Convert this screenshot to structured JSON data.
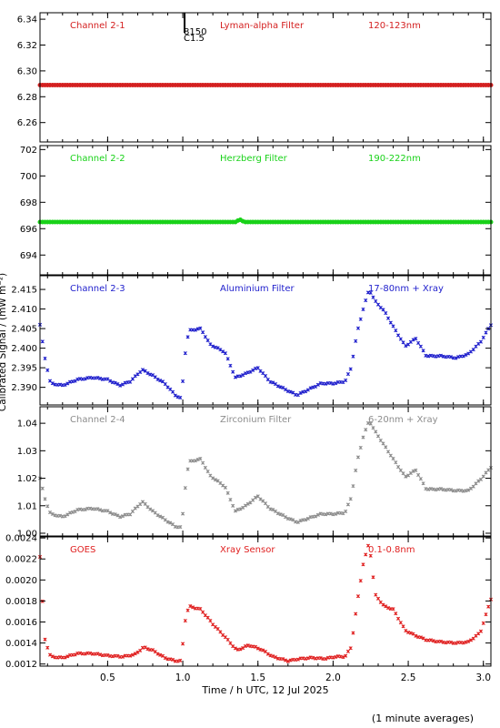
{
  "figure": {
    "ylabel": "Calibrated Signal / (mW m⁻²)",
    "xlabel": "Time / h UTC, 12 Jul 2025",
    "footnote": "(1 minute averages)",
    "x_ticks": [
      "0.5",
      "1.0",
      "1.5",
      "2.0",
      "2.5",
      "3.0"
    ],
    "marker_label_a": "8150",
    "marker_label_b": "C1.5"
  },
  "chart_data": [
    {
      "type": "scatter",
      "channel": "Channel 2-1",
      "filter": "Lyman-alpha Filter",
      "band": "120-123nm",
      "color": "#d42020",
      "xlim": [
        0.05,
        3.05
      ],
      "ylim": [
        6.245,
        6.345
      ],
      "y_ticks": [
        "6.34",
        "6.32",
        "6.30",
        "6.28",
        "6.26"
      ],
      "y_tick_values": [
        6.34,
        6.32,
        6.3,
        6.28,
        6.26
      ],
      "y_precision": 2,
      "knots": [
        [
          0.05,
          6.289
        ],
        [
          3.05,
          6.289
        ]
      ],
      "marker_time": 1.03
    },
    {
      "type": "scatter",
      "channel": "Channel 2-2",
      "filter": "Herzberg Filter",
      "band": "190-222nm",
      "color": "#19d219",
      "xlim": [
        0.05,
        3.05
      ],
      "ylim": [
        692.5,
        702.3
      ],
      "y_ticks": [
        "702",
        "700",
        "698",
        "696",
        "694"
      ],
      "y_tick_values": [
        702,
        700,
        698,
        696,
        694
      ],
      "y_precision": 1,
      "knots": [
        [
          0.05,
          696.5
        ],
        [
          1.35,
          696.5
        ],
        [
          1.38,
          696.7
        ],
        [
          1.41,
          696.5
        ],
        [
          3.05,
          696.5
        ]
      ]
    },
    {
      "type": "scatter",
      "channel": "Channel 2-3",
      "filter": "Aluminium Filter",
      "band": "17-80nm + Xray",
      "color": "#1e1ecc",
      "xlim": [
        0.05,
        3.05
      ],
      "ylim": [
        2.3855,
        2.4185
      ],
      "y_ticks": [
        "2.415",
        "2.410",
        "2.405",
        "2.400",
        "2.395",
        "2.390"
      ],
      "y_tick_values": [
        2.415,
        2.41,
        2.405,
        2.4,
        2.395,
        2.39
      ],
      "y_precision": 4,
      "knots": [
        [
          0.05,
          2.406
        ],
        [
          0.08,
          2.398
        ],
        [
          0.12,
          2.391
        ],
        [
          0.2,
          2.3905
        ],
        [
          0.3,
          2.392
        ],
        [
          0.4,
          2.3925
        ],
        [
          0.5,
          2.392
        ],
        [
          0.58,
          2.3905
        ],
        [
          0.65,
          2.3915
        ],
        [
          0.73,
          2.3945
        ],
        [
          0.8,
          2.393
        ],
        [
          0.88,
          2.391
        ],
        [
          0.95,
          2.388
        ],
        [
          0.995,
          2.387
        ],
        [
          1.005,
          2.396
        ],
        [
          1.04,
          2.4045
        ],
        [
          1.12,
          2.405
        ],
        [
          1.18,
          2.401
        ],
        [
          1.28,
          2.399
        ],
        [
          1.35,
          2.3925
        ],
        [
          1.42,
          2.3935
        ],
        [
          1.5,
          2.395
        ],
        [
          1.58,
          2.3915
        ],
        [
          1.68,
          2.3895
        ],
        [
          1.76,
          2.388
        ],
        [
          1.84,
          2.3895
        ],
        [
          1.92,
          2.391
        ],
        [
          2.0,
          2.391
        ],
        [
          2.08,
          2.3915
        ],
        [
          2.12,
          2.395
        ],
        [
          2.16,
          2.404
        ],
        [
          2.2,
          2.41
        ],
        [
          2.24,
          2.415
        ],
        [
          2.28,
          2.412
        ],
        [
          2.34,
          2.4095
        ],
        [
          2.4,
          2.4055
        ],
        [
          2.48,
          2.4005
        ],
        [
          2.55,
          2.4025
        ],
        [
          2.62,
          2.398
        ],
        [
          2.72,
          2.398
        ],
        [
          2.82,
          2.3975
        ],
        [
          2.9,
          2.3985
        ],
        [
          2.98,
          2.4015
        ],
        [
          3.05,
          2.406
        ]
      ]
    },
    {
      "type": "scatter",
      "channel": "Channel 2-4",
      "filter": "Zirconium Filter",
      "band": "6-20nm + Xray",
      "color": "#8c8c8c",
      "xlim": [
        0.05,
        3.05
      ],
      "ylim": [
        0.999,
        1.046
      ],
      "y_ticks": [
        "1.04",
        "1.03",
        "1.02",
        "1.01",
        "1.00"
      ],
      "y_tick_values": [
        1.04,
        1.03,
        1.02,
        1.01,
        1.0
      ],
      "y_precision": 4,
      "knots": [
        [
          0.05,
          1.02
        ],
        [
          0.08,
          1.013
        ],
        [
          0.12,
          1.007
        ],
        [
          0.2,
          1.006
        ],
        [
          0.3,
          1.0085
        ],
        [
          0.4,
          1.009
        ],
        [
          0.5,
          1.008
        ],
        [
          0.58,
          1.006
        ],
        [
          0.65,
          1.007
        ],
        [
          0.73,
          1.0115
        ],
        [
          0.8,
          1.008
        ],
        [
          0.88,
          1.005
        ],
        [
          0.95,
          1.0025
        ],
        [
          0.995,
          1.002
        ],
        [
          1.005,
          1.012
        ],
        [
          1.04,
          1.026
        ],
        [
          1.12,
          1.027
        ],
        [
          1.18,
          1.021
        ],
        [
          1.28,
          1.017
        ],
        [
          1.35,
          1.008
        ],
        [
          1.42,
          1.01
        ],
        [
          1.5,
          1.0135
        ],
        [
          1.58,
          1.009
        ],
        [
          1.68,
          1.006
        ],
        [
          1.76,
          1.004
        ],
        [
          1.84,
          1.0055
        ],
        [
          1.92,
          1.007
        ],
        [
          2.0,
          1.007
        ],
        [
          2.08,
          1.0075
        ],
        [
          2.12,
          1.013
        ],
        [
          2.16,
          1.026
        ],
        [
          2.2,
          1.035
        ],
        [
          2.24,
          1.041
        ],
        [
          2.28,
          1.037
        ],
        [
          2.34,
          1.032
        ],
        [
          2.4,
          1.027
        ],
        [
          2.48,
          1.0205
        ],
        [
          2.55,
          1.023
        ],
        [
          2.62,
          1.016
        ],
        [
          2.72,
          1.016
        ],
        [
          2.82,
          1.0155
        ],
        [
          2.9,
          1.0155
        ],
        [
          2.98,
          1.0195
        ],
        [
          3.05,
          1.024
        ]
      ]
    },
    {
      "type": "scatter",
      "channel": "GOES",
      "filter": "Xray Sensor",
      "band": "0.1-0.8nm",
      "color": "#e02020",
      "xlim": [
        0.05,
        3.05
      ],
      "ylim": [
        0.00118,
        0.00241
      ],
      "y_ticks": [
        "0.0024",
        "0.0022",
        "0.0020",
        "0.0018",
        "0.0016",
        "0.0014",
        "0.0012"
      ],
      "y_tick_values": [
        0.0024,
        0.0022,
        0.002,
        0.0018,
        0.0016,
        0.0014,
        0.0012
      ],
      "y_precision": 6,
      "knots": [
        [
          0.05,
          0.00222
        ],
        [
          0.08,
          0.00145
        ],
        [
          0.12,
          0.00127
        ],
        [
          0.2,
          0.00126
        ],
        [
          0.3,
          0.0013
        ],
        [
          0.4,
          0.0013
        ],
        [
          0.5,
          0.00128
        ],
        [
          0.6,
          0.00127
        ],
        [
          0.68,
          0.00129
        ],
        [
          0.74,
          0.00136
        ],
        [
          0.8,
          0.00133
        ],
        [
          0.88,
          0.00126
        ],
        [
          0.95,
          0.00123
        ],
        [
          0.995,
          0.00123
        ],
        [
          1.005,
          0.00155
        ],
        [
          1.04,
          0.00175
        ],
        [
          1.12,
          0.00172
        ],
        [
          1.2,
          0.00158
        ],
        [
          1.28,
          0.00146
        ],
        [
          1.36,
          0.00133
        ],
        [
          1.44,
          0.00138
        ],
        [
          1.52,
          0.00134
        ],
        [
          1.6,
          0.00127
        ],
        [
          1.7,
          0.00123
        ],
        [
          1.78,
          0.00125
        ],
        [
          1.86,
          0.00126
        ],
        [
          1.94,
          0.00125
        ],
        [
          2.02,
          0.00127
        ],
        [
          2.08,
          0.00127
        ],
        [
          2.12,
          0.00136
        ],
        [
          2.16,
          0.00178
        ],
        [
          2.2,
          0.00215
        ],
        [
          2.24,
          0.00236
        ],
        [
          2.28,
          0.00186
        ],
        [
          2.34,
          0.00175
        ],
        [
          2.4,
          0.00172
        ],
        [
          2.48,
          0.00152
        ],
        [
          2.55,
          0.00147
        ],
        [
          2.62,
          0.00143
        ],
        [
          2.72,
          0.00141
        ],
        [
          2.82,
          0.0014
        ],
        [
          2.9,
          0.00141
        ],
        [
          2.98,
          0.0015
        ],
        [
          3.05,
          0.00182
        ]
      ]
    }
  ]
}
